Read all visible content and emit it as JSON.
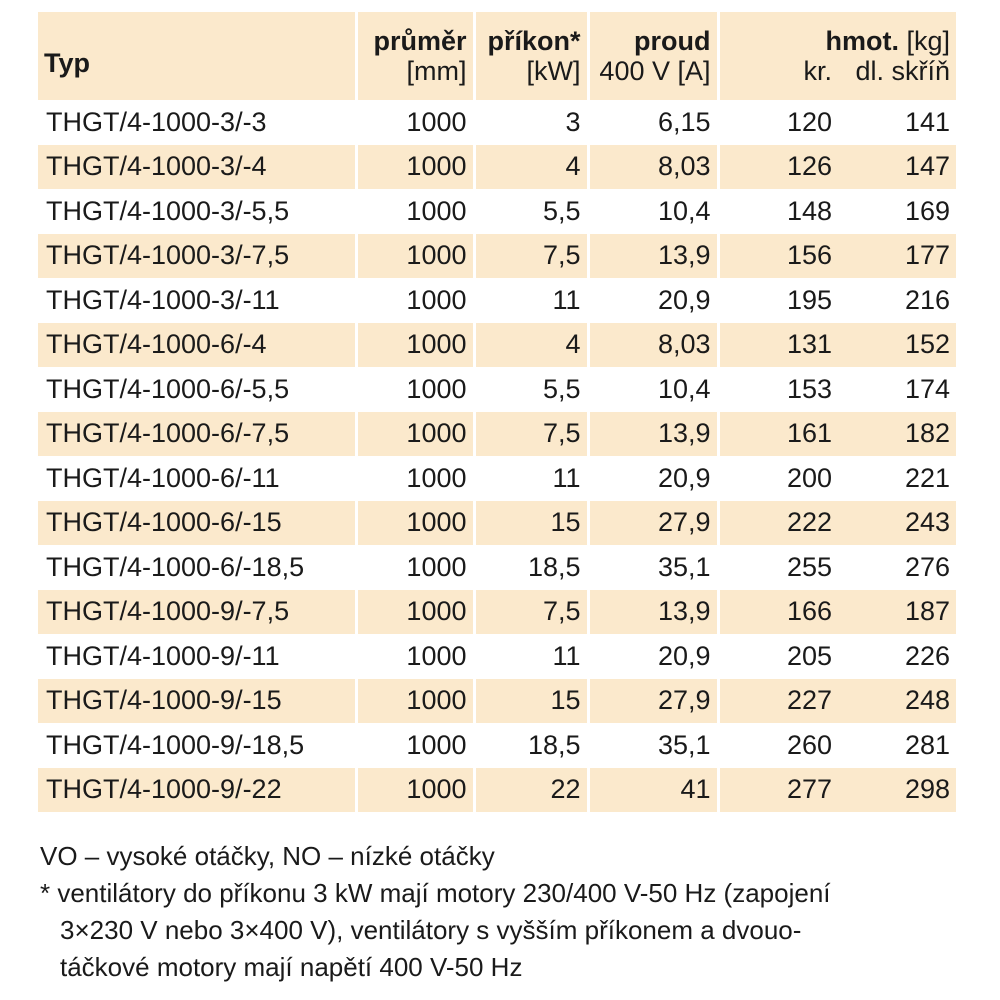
{
  "header": {
    "type_label": "Typ",
    "diameter_label": "průměr",
    "diameter_unit": "[mm]",
    "power_label": "příkon*",
    "power_unit": "[kW]",
    "current_label": "proud",
    "current_unit": "400 V [A]",
    "weight_label": "hmot.",
    "weight_unit": "[kg]",
    "weight_kr_label": "kr.",
    "weight_dl_label": "dl. skříň"
  },
  "rows": [
    {
      "type": "THGT/4-1000-3/-3",
      "diameter": "1000",
      "power": "3",
      "current": "6,15",
      "kr": "120",
      "dl": "141"
    },
    {
      "type": "THGT/4-1000-3/-4",
      "diameter": "1000",
      "power": "4",
      "current": "8,03",
      "kr": "126",
      "dl": "147"
    },
    {
      "type": "THGT/4-1000-3/-5,5",
      "diameter": "1000",
      "power": "5,5",
      "current": "10,4",
      "kr": "148",
      "dl": "169"
    },
    {
      "type": "THGT/4-1000-3/-7,5",
      "diameter": "1000",
      "power": "7,5",
      "current": "13,9",
      "kr": "156",
      "dl": "177"
    },
    {
      "type": "THGT/4-1000-3/-11",
      "diameter": "1000",
      "power": "11",
      "current": "20,9",
      "kr": "195",
      "dl": "216"
    },
    {
      "type": "THGT/4-1000-6/-4",
      "diameter": "1000",
      "power": "4",
      "current": "8,03",
      "kr": "131",
      "dl": "152"
    },
    {
      "type": "THGT/4-1000-6/-5,5",
      "diameter": "1000",
      "power": "5,5",
      "current": "10,4",
      "kr": "153",
      "dl": "174"
    },
    {
      "type": "THGT/4-1000-6/-7,5",
      "diameter": "1000",
      "power": "7,5",
      "current": "13,9",
      "kr": "161",
      "dl": "182"
    },
    {
      "type": "THGT/4-1000-6/-11",
      "diameter": "1000",
      "power": "11",
      "current": "20,9",
      "kr": "200",
      "dl": "221"
    },
    {
      "type": "THGT/4-1000-6/-15",
      "diameter": "1000",
      "power": "15",
      "current": "27,9",
      "kr": "222",
      "dl": "243"
    },
    {
      "type": "THGT/4-1000-6/-18,5",
      "diameter": "1000",
      "power": "18,5",
      "current": "35,1",
      "kr": "255",
      "dl": "276"
    },
    {
      "type": "THGT/4-1000-9/-7,5",
      "diameter": "1000",
      "power": "7,5",
      "current": "13,9",
      "kr": "166",
      "dl": "187"
    },
    {
      "type": "THGT/4-1000-9/-11",
      "diameter": "1000",
      "power": "11",
      "current": "20,9",
      "kr": "205",
      "dl": "226"
    },
    {
      "type": "THGT/4-1000-9/-15",
      "diameter": "1000",
      "power": "15",
      "current": "27,9",
      "kr": "227",
      "dl": "248"
    },
    {
      "type": "THGT/4-1000-9/-18,5",
      "diameter": "1000",
      "power": "18,5",
      "current": "35,1",
      "kr": "260",
      "dl": "281"
    },
    {
      "type": "THGT/4-1000-9/-22",
      "diameter": "1000",
      "power": "22",
      "current": "41",
      "kr": "277",
      "dl": "298"
    }
  ],
  "notes": {
    "line1": "VO – vysoké otáčky, NO – nízké otáčky",
    "line2": "* ventilátory do příkonu 3 kW mají motory 230/400 V-50 Hz (zapojení",
    "line3": "3×230 V nebo 3×400 V), ventilátory s vyšším příkonem a dvouo-",
    "line4": "táčkové motory mají napětí 400 V-50 Hz"
  },
  "colors": {
    "shade": "#fbe9cc",
    "text": "#1a1a1a"
  }
}
